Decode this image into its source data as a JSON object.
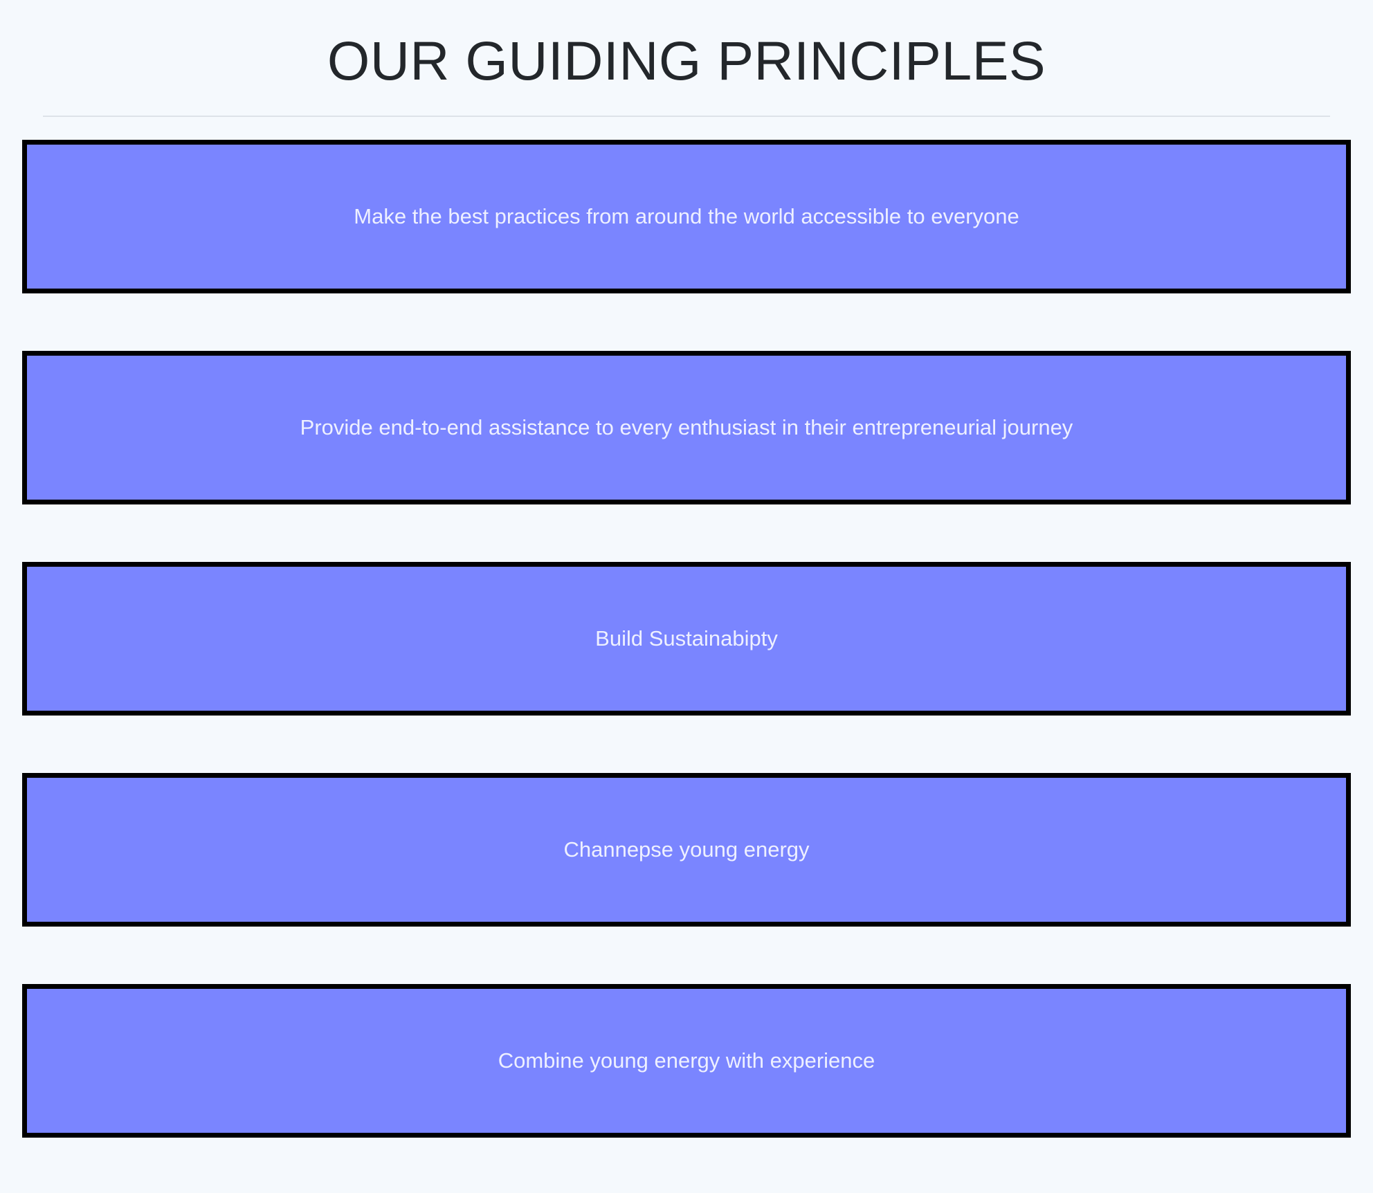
{
  "header": {
    "title": "OUR GUIDING PRINCIPLES"
  },
  "principles": [
    {
      "text": "Make the best practices from around the world accessible to everyone"
    },
    {
      "text": "Provide end-to-end assistance to every enthusiast in their entrepreneurial journey"
    },
    {
      "text": "Build Sustainabipty"
    },
    {
      "text": "Channepse young energy"
    },
    {
      "text": "Combine young energy with experience"
    }
  ],
  "colors": {
    "page_background": "#f5f9fd",
    "card_background": "#7a85ff",
    "card_border": "#000000",
    "card_text": "#eef0ff",
    "title_text": "#23272b",
    "divider": "#dde2e8"
  }
}
